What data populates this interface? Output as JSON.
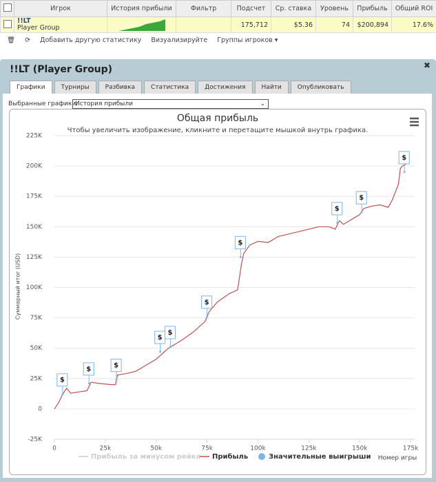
{
  "table": {
    "headers": [
      "Игрок",
      "История прибыли",
      "Фильтр",
      "Подсчет",
      "Ср. ставка",
      "Уровень",
      "Прибыль",
      "Общий ROI"
    ],
    "row": {
      "player": "!!LT",
      "group": "Player Group",
      "count": "175,712",
      "avg_stake": "$5.36",
      "level": "74",
      "profit": "$200,894",
      "roi": "17.6%"
    }
  },
  "toolbar": [
    "Добавить другую статистику",
    "Визуализируйте",
    "Группы игроков"
  ],
  "panel": {
    "title": "!!LT (Player Group)",
    "tabs": [
      "Графики",
      "Турниры",
      "Разбивка",
      "Статистика",
      "Достижения",
      "Найти",
      "Опубликовать"
    ],
    "select_label": "Выбранные графики:",
    "select_value": "История прибыли"
  },
  "chart_data": {
    "type": "line",
    "title": "Общая прибыль",
    "subtitle": "Чтобы увеличить изображение, кликните и перетащите мышкой внутрь графика.",
    "y_label": "Суммарный итог (USD)",
    "x_label": "Номер игры",
    "xlim": [
      0,
      177000
    ],
    "ylim": [
      -25000,
      225000
    ],
    "xticks": [
      0,
      {
        "value": 25000,
        "label": "25k"
      },
      {
        "value": 50000,
        "label": "50k"
      },
      {
        "value": 75000,
        "label": "75k"
      },
      {
        "value": 100000,
        "label": "100k"
      },
      {
        "value": 125000,
        "label": "125k"
      },
      {
        "value": 150000,
        "label": "150k"
      },
      {
        "value": 175000,
        "label": "175k"
      }
    ],
    "yticks": [
      {
        "value": -25000,
        "label": "-25K"
      },
      0,
      {
        "value": 25000,
        "label": "25K"
      },
      {
        "value": 50000,
        "label": "50K"
      },
      {
        "value": 75000,
        "label": "75K"
      },
      {
        "value": 100000,
        "label": "100K"
      },
      {
        "value": 125000,
        "label": "125K"
      },
      {
        "value": 150000,
        "label": "150K"
      },
      {
        "value": 175000,
        "label": "175K"
      },
      {
        "value": 200000,
        "label": "200K"
      },
      {
        "value": 225000,
        "label": "225K"
      }
    ],
    "grid": true,
    "x": [
      0,
      2000,
      4000,
      6000,
      8000,
      12000,
      16000,
      18000,
      22000,
      28000,
      30000,
      31000,
      35000,
      40000,
      45000,
      50000,
      54000,
      56000,
      58000,
      62000,
      68000,
      74000,
      76000,
      80000,
      86000,
      90000,
      92000,
      93000,
      96000,
      100000,
      105000,
      110000,
      115000,
      120000,
      125000,
      130000,
      135000,
      138000,
      140000,
      142000,
      146000,
      150000,
      152000,
      156000,
      160000,
      164000,
      166000,
      169000,
      170000,
      171000,
      173000
    ],
    "series": [
      {
        "name": "Прибыль за минусом рейка",
        "color": "#cccccc",
        "visible": false
      },
      {
        "name": "Прибыль",
        "color": "#c0504d",
        "visible": true,
        "values": [
          0,
          5000,
          12000,
          17000,
          13000,
          14000,
          15000,
          22000,
          21000,
          20000,
          20000,
          28000,
          29000,
          31000,
          36000,
          41000,
          47000,
          50000,
          52000,
          56000,
          63000,
          72000,
          80000,
          88000,
          95000,
          98000,
          120000,
          128000,
          135000,
          138000,
          137000,
          142000,
          144000,
          146000,
          148000,
          150000,
          150000,
          148000,
          155000,
          152000,
          156000,
          160000,
          165000,
          167000,
          168000,
          166000,
          172000,
          185000,
          198000,
          200000,
          202000
        ]
      }
    ],
    "markers": {
      "name": "Значительные выигрыши",
      "color": "#7cb5ec",
      "x": [
        4000,
        17000,
        30500,
        52000,
        57000,
        75000,
        91500,
        139000,
        151000,
        172000
      ],
      "y": [
        12000,
        21000,
        24000,
        47000,
        51000,
        76000,
        125000,
        153000,
        162000,
        195000
      ],
      "labels": [
        "$",
        "$",
        "$",
        "$",
        "$",
        "$",
        "$",
        "$",
        "$",
        "$"
      ]
    }
  }
}
